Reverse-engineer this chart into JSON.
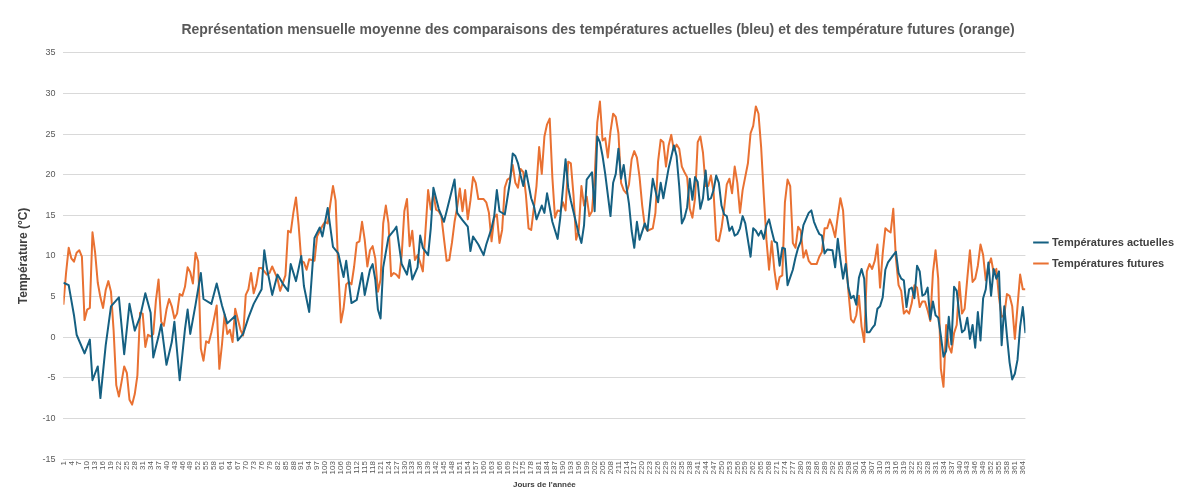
{
  "chart_data": {
    "type": "line",
    "title": "Représentation mensuelle moyenne des comparaisons des températures actuelles (bleu) et des température futures (orange)",
    "xlabel": "Jours de l'année",
    "ylabel": "Température (°C)",
    "xlim": [
      1,
      365
    ],
    "xticks": [
      1,
      4,
      7,
      10,
      13,
      16,
      19,
      22,
      25,
      28,
      31,
      34,
      37,
      40,
      43,
      46,
      49,
      52,
      55,
      58,
      61,
      64,
      67,
      70,
      73,
      76,
      79,
      82,
      85,
      88,
      91,
      94,
      97,
      100,
      103,
      106,
      109,
      112,
      115,
      118,
      121,
      124,
      127,
      130,
      133,
      136,
      139,
      142,
      145,
      148,
      151,
      154,
      157,
      160,
      163,
      166,
      169,
      172,
      175,
      178,
      181,
      184,
      187,
      190,
      193,
      196,
      199,
      202,
      205,
      208,
      211,
      214,
      217,
      220,
      223,
      226,
      229,
      232,
      235,
      238,
      241,
      244,
      247,
      250,
      253,
      256,
      259,
      262,
      265,
      268,
      271,
      274,
      277,
      280,
      283,
      286,
      289,
      292,
      295,
      298,
      301,
      304,
      307,
      310,
      313,
      316,
      319,
      322,
      325,
      328,
      331,
      334,
      337,
      340,
      343,
      346,
      349,
      352,
      355,
      358,
      361,
      364
    ],
    "ylim": [
      -15,
      35
    ],
    "yticks": [
      -15,
      -10,
      -5,
      0,
      5,
      10,
      15,
      20,
      25,
      30,
      35
    ],
    "grid": "y",
    "legend": "right",
    "marker": "none",
    "line_style": "solid",
    "series": [
      {
        "name": "Températures actuelles",
        "color": "#156082",
        "x": [
          1,
          3,
          5,
          6,
          9,
          11,
          12,
          14,
          15,
          17,
          19,
          22,
          24,
          26,
          28,
          30,
          32,
          34,
          35,
          37,
          38,
          40,
          42,
          43,
          45,
          47,
          48,
          49,
          51,
          53,
          54,
          57,
          59,
          61,
          63,
          66,
          67,
          69,
          71,
          73,
          76,
          77,
          78,
          80,
          82,
          84,
          86,
          87,
          89,
          91,
          92,
          94,
          95,
          96,
          98,
          99,
          101,
          103,
          105,
          107,
          108,
          110,
          112,
          114,
          115,
          117,
          118,
          119,
          120,
          121,
          122,
          124,
          126,
          127,
          129,
          131,
          132,
          133,
          135,
          136,
          137,
          139,
          140,
          141,
          143,
          145,
          146,
          148,
          149,
          150,
          152,
          154,
          155,
          156,
          158,
          160,
          161,
          163,
          164,
          165,
          166,
          168,
          170,
          171,
          172,
          173,
          174,
          175,
          176,
          178,
          179,
          180,
          182,
          183,
          184,
          186,
          188,
          189,
          191,
          192,
          193,
          196,
          197,
          198,
          199,
          201,
          202,
          203,
          204,
          205,
          206,
          208,
          209,
          210,
          211,
          212,
          213,
          214,
          215,
          216,
          217,
          218,
          219,
          221,
          222,
          223,
          224,
          226,
          227,
          228,
          230,
          232,
          233,
          234,
          235,
          236,
          237,
          238,
          239,
          240,
          241,
          242,
          243,
          244,
          245,
          246,
          247,
          248,
          249,
          250,
          251,
          252,
          253,
          254,
          255,
          256,
          257,
          258,
          259,
          261,
          262,
          263,
          264,
          265,
          266,
          267,
          268,
          269,
          270,
          271,
          272,
          273,
          274,
          275,
          277,
          278,
          279,
          280,
          281,
          283,
          284,
          285,
          286,
          287,
          288,
          289,
          290,
          292,
          293,
          294,
          295,
          296,
          297,
          298,
          299,
          300,
          301,
          302,
          303,
          304,
          305,
          306,
          307,
          308,
          309,
          310,
          311,
          312,
          313,
          315,
          316,
          317,
          318,
          319,
          320,
          321,
          322,
          323,
          324,
          325,
          326,
          327,
          328,
          329,
          330,
          331,
          332,
          333,
          334,
          335,
          336,
          337,
          338,
          339,
          340,
          341,
          342,
          343,
          344,
          345,
          346,
          347,
          348,
          349,
          350,
          351,
          352,
          353,
          354,
          355,
          356,
          357,
          358,
          359,
          360,
          361,
          362,
          363,
          364,
          365
        ],
        "values": [
          6.7,
          6.4,
          2.7,
          0.3,
          -2,
          -0.3,
          -5.3,
          -3.6,
          -7.5,
          -1,
          3.8,
          4.9,
          -2.1,
          4.1,
          0.8,
          2.5,
          5.4,
          3,
          -2.5,
          0.1,
          1.6,
          -3.4,
          -0.6,
          1.9,
          -5.3,
          1,
          3.4,
          0.4,
          4,
          7.9,
          4.7,
          4.1,
          6.6,
          3.9,
          1.7,
          2.6,
          -0.4,
          0.4,
          2.4,
          4.1,
          5.9,
          10.7,
          8.5,
          5.2,
          7.7,
          6.6,
          5.7,
          9,
          6.9,
          10,
          6.3,
          3.1,
          7.6,
          12.2,
          13.5,
          12.4,
          15.9,
          11.1,
          10.3,
          7.4,
          9.4,
          4.2,
          4.6,
          7.9,
          5.2,
          8.3,
          9,
          7.1,
          3.4,
          2.3,
          8.6,
          12.3,
          13.1,
          13.6,
          9,
          7.7,
          9.5,
          7.1,
          8.6,
          12.5,
          11,
          10.1,
          13.4,
          18.4,
          15.8,
          14.2,
          15.5,
          18.1,
          19.4,
          15.3,
          14.4,
          13.6,
          10.6,
          12.4,
          11.4,
          10.1,
          11.4,
          13.4,
          14.9,
          18.1,
          15.5,
          15.1,
          19.2,
          22.6,
          22.3,
          21.4,
          19.9,
          18.6,
          20.5,
          17.1,
          16.2,
          14.5,
          16.2,
          15.3,
          17.7,
          14.2,
          12.1,
          14.7,
          21.9,
          18.4,
          16.8,
          12.7,
          11.6,
          13.8,
          19.4,
          20.3,
          15.5,
          24.7,
          24,
          22.3,
          20.1,
          14.9,
          19,
          20.1,
          23.2,
          19.5,
          21.2,
          18.6,
          16.4,
          13.1,
          11,
          14.2,
          12,
          14,
          13.1,
          16.4,
          19.5,
          16.6,
          19,
          17.1,
          20.8,
          23.6,
          22.3,
          18.6,
          14,
          14.7,
          16,
          19.5,
          16.9,
          19.7,
          19.1,
          15.8,
          17.1,
          20.5,
          16.9,
          17.1,
          18.1,
          19.9,
          19,
          16.2,
          15.1,
          14.9,
          13.1,
          13.6,
          12.5,
          12.7,
          13.4,
          14.9,
          14,
          9.9,
          13.4,
          13.1,
          12.5,
          13.1,
          12.1,
          13.8,
          14.5,
          13.1,
          11.8,
          11.6,
          8.8,
          11,
          10.9,
          6.4,
          8.3,
          9.8,
          11,
          11.8,
          13.8,
          15.3,
          15.6,
          14.2,
          13.4,
          12.7,
          12.5,
          10.3,
          10.8,
          10.7,
          8.6,
          12.1,
          9.5,
          7.2,
          9,
          6.1,
          4.8,
          5.1,
          4,
          7.3,
          8.4,
          7.2,
          0.6,
          0.6,
          1.1,
          1.5,
          3.5,
          3.8,
          4.9,
          8.3,
          9.2,
          10.1,
          10.5,
          7.9,
          7.2,
          7,
          3.7,
          5.9,
          6.1,
          4.8,
          8.8,
          8.1,
          5.1,
          5.3,
          6.1,
          2.2,
          4.4,
          2.7,
          2.4,
          0.2,
          -2.4,
          -1.7,
          2.5,
          -0.9,
          6.2,
          5.7,
          2.7,
          0.6,
          0.9,
          2.4,
          -0.2,
          1.5,
          -1.3,
          3.1,
          -0.4,
          4.8,
          5.9,
          9.2,
          5.1,
          8.4,
          7.2,
          8.1,
          -1,
          3.8,
          0.2,
          -3.1,
          -5.2,
          -4.5,
          -2.8,
          1.3,
          3.7,
          0.5
        ]
      },
      {
        "name": "Températures futures",
        "color": "#e97132",
        "x": [
          1,
          2,
          3,
          4,
          5,
          6,
          7,
          8,
          9,
          10,
          11,
          12,
          13,
          14,
          15,
          16,
          17,
          18,
          19,
          20,
          21,
          22,
          23,
          24,
          25,
          26,
          27,
          28,
          29,
          30,
          31,
          32,
          33,
          34,
          35,
          36,
          37,
          38,
          39,
          40,
          41,
          42,
          43,
          44,
          45,
          46,
          47,
          48,
          49,
          50,
          51,
          52,
          53,
          54,
          55,
          56,
          57,
          59,
          60,
          61,
          62,
          63,
          64,
          65,
          66,
          68,
          69,
          70,
          71,
          72,
          73,
          74,
          75,
          76,
          78,
          79,
          80,
          82,
          83,
          85,
          86,
          87,
          88,
          89,
          90,
          91,
          92,
          93,
          94,
          96,
          97,
          99,
          100,
          101,
          102,
          103,
          104,
          105,
          106,
          107,
          108,
          109,
          110,
          111,
          112,
          113,
          114,
          115,
          116,
          117,
          118,
          119,
          120,
          121,
          122,
          123,
          124,
          125,
          126,
          127,
          128,
          129,
          130,
          131,
          132,
          133,
          134,
          135,
          136,
          137,
          138,
          139,
          140,
          141,
          142,
          143,
          144,
          145,
          146,
          147,
          148,
          149,
          150,
          151,
          152,
          153,
          154,
          155,
          156,
          157,
          158,
          160,
          161,
          162,
          163,
          164,
          165,
          166,
          167,
          168,
          169,
          170,
          171,
          172,
          173,
          174,
          175,
          176,
          177,
          178,
          180,
          181,
          182,
          183,
          184,
          185,
          186,
          187,
          188,
          189,
          190,
          191,
          192,
          193,
          194,
          195,
          196,
          197,
          198,
          199,
          200,
          201,
          202,
          203,
          204,
          205,
          206,
          207,
          208,
          209,
          210,
          211,
          212,
          213,
          214,
          215,
          216,
          217,
          218,
          219,
          220,
          221,
          222,
          224,
          225,
          226,
          227,
          228,
          229,
          230,
          231,
          232,
          233,
          234,
          235,
          236,
          237,
          238,
          239,
          240,
          241,
          242,
          243,
          244,
          245,
          246,
          247,
          248,
          249,
          250,
          251,
          252,
          253,
          254,
          255,
          256,
          257,
          258,
          260,
          261,
          262,
          263,
          264,
          265,
          266,
          267,
          268,
          269,
          270,
          271,
          272,
          273,
          274,
          275,
          276,
          277,
          278,
          279,
          280,
          281,
          282,
          283,
          284,
          285,
          286,
          287,
          288,
          289,
          290,
          291,
          292,
          293,
          294,
          295,
          296,
          297,
          298,
          299,
          300,
          301,
          302,
          303,
          304,
          305,
          306,
          307,
          308,
          309,
          310,
          311,
          312,
          313,
          314,
          315,
          316,
          317,
          318,
          319,
          320,
          321,
          322,
          323,
          324,
          325,
          326,
          327,
          328,
          329,
          330,
          331,
          332,
          333,
          334,
          335,
          336,
          337,
          338,
          339,
          340,
          341,
          342,
          343,
          344,
          345,
          346,
          347,
          348,
          349,
          350,
          351,
          352,
          353,
          354,
          355,
          356,
          357,
          358,
          359,
          360,
          361,
          362,
          363,
          364,
          365
        ],
        "values": [
          4,
          7.9,
          11,
          9.7,
          9.3,
          10.4,
          10.7,
          9.9,
          2.1,
          3.4,
          3.6,
          12.9,
          10.4,
          6.7,
          4.9,
          3.6,
          5.8,
          6.9,
          5.6,
          0.8,
          -5.9,
          -7.3,
          -5.5,
          -3.6,
          -4.4,
          -7.7,
          -8.3,
          -7,
          -4.7,
          3,
          2.9,
          -1.2,
          0.3,
          0.1,
          0.4,
          4.5,
          7.1,
          1.9,
          1.4,
          3.4,
          4.7,
          3.8,
          2.3,
          2.9,
          5.3,
          5.1,
          6.2,
          8.6,
          8,
          6.6,
          10.4,
          9.3,
          -1.4,
          -2.9,
          -0.5,
          -0.7,
          0.6,
          3.9,
          -3.9,
          -0.9,
          2.8,
          0.4,
          0.9,
          -0.6,
          3.5,
          0.9,
          0.2,
          5.2,
          5.9,
          7.9,
          5.4,
          6.5,
          8.5,
          8.5,
          7.7,
          7.9,
          8.7,
          7.2,
          5.7,
          7.6,
          13.1,
          12.9,
          15.3,
          17.2,
          13.8,
          9.4,
          9.2,
          8.3,
          9.6,
          9.4,
          12.4,
          13.7,
          14.2,
          14,
          16.4,
          18.6,
          16.8,
          8.3,
          1.8,
          3.5,
          6.5,
          6.8,
          6.5,
          8.7,
          11.6,
          11.8,
          14.2,
          12,
          8.7,
          10.7,
          11.2,
          9.7,
          5.6,
          7.1,
          14,
          16.2,
          14,
          7.5,
          7.9,
          7.7,
          7.3,
          10.1,
          15.5,
          17,
          11.2,
          13.1,
          9.5,
          10.1,
          9.2,
          8.1,
          13.1,
          18.1,
          15.7,
          17.7,
          15.7,
          15.5,
          14.9,
          12.1,
          9.4,
          9.5,
          11.6,
          14.2,
          16,
          18.3,
          15.5,
          18.1,
          14.5,
          16.8,
          19.7,
          19,
          17,
          17,
          16.6,
          15.3,
          11.8,
          14.7,
          15.1,
          11.6,
          13.2,
          18.4,
          19.4,
          19.6,
          21.2,
          19,
          18.4,
          20.7,
          20.3,
          17.5,
          13.4,
          13.2,
          18.6,
          23.4,
          20.1,
          24.7,
          26.2,
          26.9,
          19.7,
          14.7,
          15.6,
          15.5,
          16.6,
          15.6,
          21.6,
          21.4,
          17.5,
          12,
          13.2,
          18.6,
          16.2,
          17.3,
          14.9,
          15.5,
          19.7,
          26.4,
          29,
          24.2,
          24.5,
          22.1,
          25.3,
          27.5,
          27.1,
          25.1,
          19,
          18.1,
          17.7,
          18.8,
          21.9,
          22.9,
          22.1,
          19.7,
          16.2,
          13.6,
          13.1,
          13.4,
          15.3,
          21.6,
          24.3,
          24,
          21,
          23.6,
          24.9,
          23,
          23.7,
          23.2,
          21,
          20.3,
          19.7,
          15.8,
          14.7,
          17.1,
          24,
          24.7,
          22.7,
          18.6,
          18.6,
          19.9,
          17.9,
          12,
          11.8,
          13.4,
          15.8,
          18.8,
          19.5,
          17.7,
          21,
          19,
          15.3,
          18.1,
          21.4,
          25.1,
          26,
          28.4,
          27.5,
          23.4,
          17.5,
          12,
          8.3,
          11.8,
          8.3,
          5.9,
          7.4,
          7.6,
          16.6,
          19.4,
          18.6,
          11.6,
          11,
          13.6,
          13.1,
          9.8,
          10.7,
          9.4,
          9,
          9,
          9,
          9.9,
          10.5,
          13.4,
          13.4,
          14.5,
          13.6,
          12.3,
          14.9,
          17.1,
          15.6,
          10.1,
          5.7,
          2.2,
          1.8,
          2.7,
          5.1,
          1.3,
          -0.6,
          8.1,
          9,
          8.4,
          9.4,
          11.4,
          6.1,
          10.3,
          13.4,
          13.1,
          12.9,
          15.8,
          9.7,
          6.4,
          5.7,
          2.9,
          3.3,
          2.9,
          4.2,
          6.4,
          6.1,
          3.7,
          4.4,
          4.4,
          3.3,
          2,
          7.9,
          10.7,
          7.2,
          -3.9,
          -6.1,
          1.5,
          -1.1,
          -1.9,
          0.5,
          1.5,
          6.8,
          2.9,
          3.5,
          7.2,
          10.7,
          6.8,
          7.2,
          8.8,
          11.4,
          10.1,
          7,
          8.8,
          9.7,
          7.9,
          8.4,
          4.9,
          2.5,
          2.7,
          5.3,
          5.1,
          3.8,
          -0.2,
          3.8,
          7.7,
          5.9,
          5.9
        ]
      }
    ]
  }
}
